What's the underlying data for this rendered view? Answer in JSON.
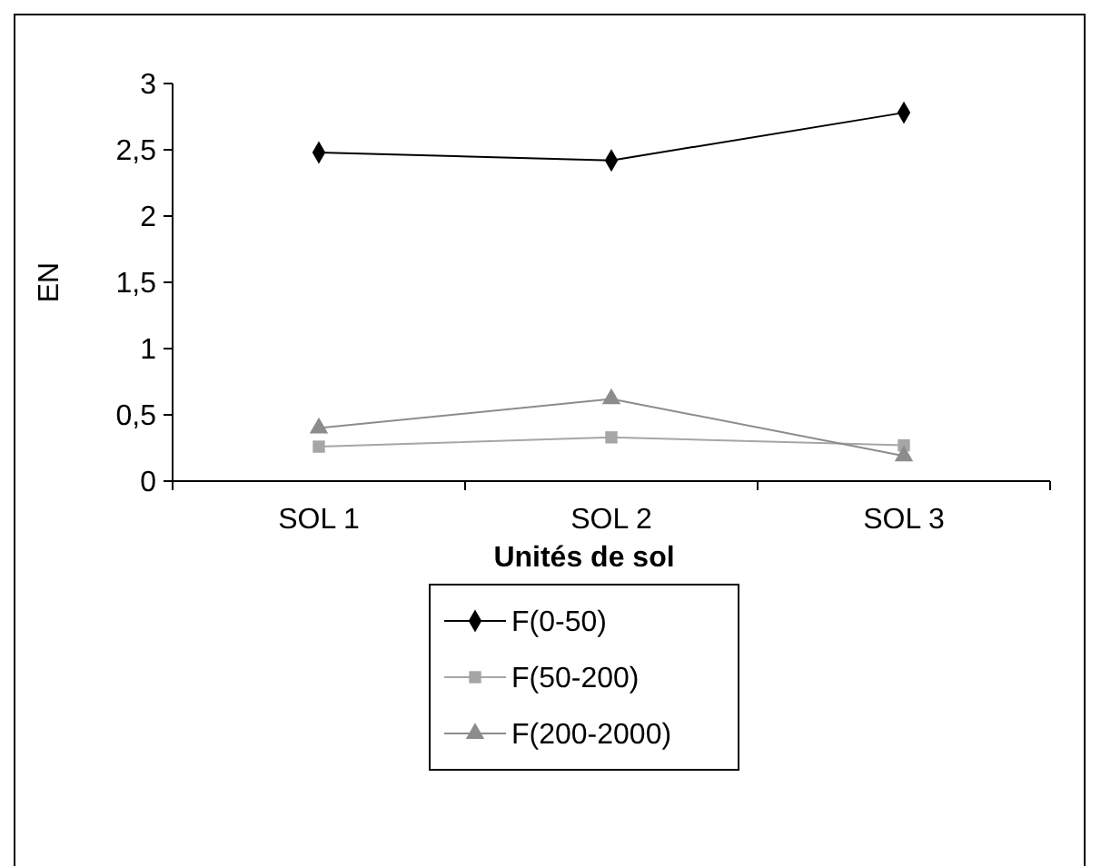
{
  "chart_data": {
    "type": "line",
    "xlabel": "Unités de sol",
    "ylabel": "EN",
    "categories": [
      "SOL 1",
      "SOL 2",
      "SOL 3"
    ],
    "series": [
      {
        "name": "F(0-50)",
        "color": "#000000",
        "marker": "diamond",
        "values": [
          2.48,
          2.42,
          2.78
        ]
      },
      {
        "name": "F(50-200)",
        "color": "#a6a6a6",
        "marker": "square",
        "values": [
          0.26,
          0.33,
          0.27
        ]
      },
      {
        "name": "F(200-2000)",
        "color": "#8c8c8c",
        "marker": "triangle",
        "values": [
          0.4,
          0.62,
          0.19
        ]
      }
    ],
    "ylim": [
      0,
      3
    ],
    "yticks": [
      0,
      {
        "value": 0.5,
        "label": "0,5"
      },
      1,
      {
        "value": 1.5,
        "label": "1,5"
      },
      2,
      {
        "value": 2.5,
        "label": "2,5"
      },
      3
    ],
    "grid": false,
    "legend": "bottom"
  }
}
